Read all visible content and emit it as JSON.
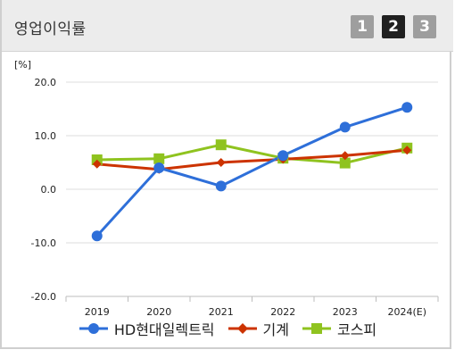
{
  "header": {
    "title": "영업이익률",
    "tabs": [
      {
        "label": "1",
        "active": false
      },
      {
        "label": "2",
        "active": true
      },
      {
        "label": "3",
        "active": false
      }
    ]
  },
  "chart_data": {
    "type": "line",
    "unit_label": "[%]",
    "categories": [
      "2019",
      "2020",
      "2021",
      "2022",
      "2023",
      "2024(E)"
    ],
    "ylim": [
      -20,
      20
    ],
    "yticks": [
      "20.0",
      "10.0",
      "0.0",
      "-10.0",
      "-20.0"
    ],
    "ytick_values": [
      20,
      10,
      0,
      -10,
      -20
    ],
    "grid": true,
    "legend_position": "bottom",
    "series": [
      {
        "name": "HD현대일렉트릭",
        "color": "#2e6fd9",
        "marker": "circle",
        "values": [
          -8.7,
          4.0,
          0.6,
          6.3,
          11.6,
          15.3
        ]
      },
      {
        "name": "기계",
        "color": "#cc3300",
        "marker": "diamond",
        "values": [
          4.7,
          3.7,
          5.0,
          5.6,
          6.3,
          7.3
        ]
      },
      {
        "name": "코스피",
        "color": "#8fc31f",
        "marker": "square",
        "values": [
          5.5,
          5.7,
          8.3,
          5.8,
          4.9,
          7.7
        ]
      }
    ]
  }
}
